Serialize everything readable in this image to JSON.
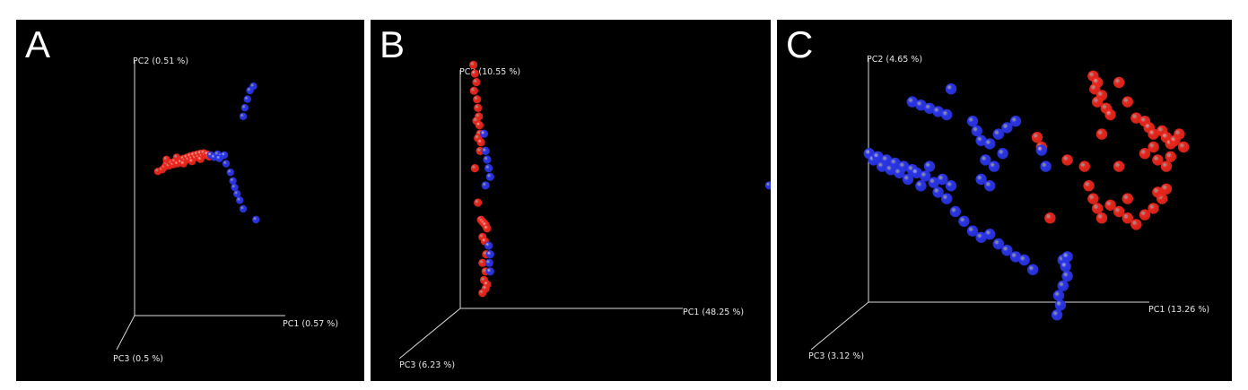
{
  "colors": {
    "group1": "#e8261c",
    "group2": "#2a35e6",
    "axis": "#d9d9d9",
    "background": "#000000"
  },
  "chart_data": [
    {
      "type": "scatter",
      "panel_label": "A",
      "axes": {
        "x": "PC1 (0.57 %)",
        "y": "PC2 (0.51 %)",
        "z": "PC3 (0.5 %)"
      },
      "grid": false,
      "series": [
        {
          "color": "red",
          "points": [
            [
              -0.6,
              0.12,
              0
            ],
            [
              -0.55,
              0.16,
              0
            ],
            [
              -0.52,
              0.22,
              0
            ],
            [
              -0.5,
              0.3,
              0
            ],
            [
              -0.47,
              0.25,
              0
            ],
            [
              -0.45,
              0.33,
              0
            ],
            [
              -0.42,
              0.28,
              0
            ],
            [
              -0.4,
              0.36,
              0
            ],
            [
              -0.37,
              0.3,
              0
            ],
            [
              -0.35,
              0.4,
              0
            ],
            [
              -0.33,
              0.34,
              0
            ],
            [
              -0.3,
              0.42,
              0
            ],
            [
              -0.28,
              0.37,
              0
            ],
            [
              -0.26,
              0.45,
              0
            ],
            [
              -0.24,
              0.4,
              0
            ],
            [
              -0.22,
              0.48,
              0
            ],
            [
              -0.2,
              0.42,
              0
            ],
            [
              -0.18,
              0.5,
              0
            ],
            [
              -0.16,
              0.44,
              0
            ],
            [
              -0.14,
              0.52,
              0
            ],
            [
              -0.12,
              0.46,
              0
            ],
            [
              -0.1,
              0.54,
              0
            ],
            [
              -0.08,
              0.47,
              0
            ],
            [
              -0.06,
              0.55,
              0
            ],
            [
              -0.04,
              0.5,
              0
            ],
            [
              -0.02,
              0.52,
              0
            ],
            [
              0.0,
              0.46,
              0
            ],
            [
              -0.3,
              0.3,
              0
            ],
            [
              -0.2,
              0.35,
              0
            ],
            [
              -0.1,
              0.4,
              0
            ],
            [
              -0.5,
              0.4,
              0
            ],
            [
              -0.38,
              0.45,
              0
            ]
          ]
        },
        {
          "color": "blue",
          "points": [
            [
              0.02,
              0.5,
              0
            ],
            [
              0.06,
              0.45,
              0
            ],
            [
              0.1,
              0.52,
              0
            ],
            [
              0.14,
              0.47,
              0
            ],
            [
              0.18,
              0.5,
              0
            ],
            [
              0.12,
              0.42,
              0
            ],
            [
              0.2,
              0.3,
              0
            ],
            [
              0.25,
              0.1,
              0
            ],
            [
              0.28,
              -0.1,
              0
            ],
            [
              0.3,
              -0.25,
              0
            ],
            [
              0.33,
              -0.4,
              0
            ],
            [
              0.36,
              -0.55,
              0
            ],
            [
              0.4,
              -0.75,
              0
            ],
            [
              0.55,
              -1.0,
              0
            ],
            [
              0.4,
              1.4,
              0
            ],
            [
              0.42,
              1.6,
              0
            ],
            [
              0.45,
              1.8,
              0
            ],
            [
              0.48,
              2.0,
              0
            ],
            [
              0.52,
              2.1,
              0
            ]
          ]
        }
      ]
    },
    {
      "type": "scatter",
      "panel_label": "B",
      "axes": {
        "x": "PC1 (48.25 %)",
        "y": "PC2 (10.55 %)",
        "z": "PC3 (6.23 %)"
      },
      "grid": false,
      "series": [
        {
          "color": "red",
          "points": [
            [
              -0.1,
              2.6,
              0
            ],
            [
              -0.05,
              2.5,
              0
            ],
            [
              0.0,
              2.4,
              0
            ],
            [
              -0.08,
              2.3,
              0
            ],
            [
              0.02,
              2.2,
              0
            ],
            [
              0.05,
              2.1,
              0
            ],
            [
              0.08,
              2.0,
              0
            ],
            [
              0.0,
              1.95,
              0
            ],
            [
              0.1,
              1.9,
              0
            ],
            [
              0.12,
              1.8,
              0
            ],
            [
              0.05,
              1.75,
              0
            ],
            [
              0.15,
              1.7,
              0
            ],
            [
              0.12,
              1.6,
              0
            ],
            [
              -0.05,
              1.4,
              0
            ],
            [
              0.05,
              1.0,
              0
            ],
            [
              0.15,
              0.8,
              0
            ],
            [
              0.2,
              0.78,
              0
            ],
            [
              0.25,
              0.76,
              0
            ],
            [
              0.3,
              0.74,
              0
            ],
            [
              0.35,
              0.7,
              0
            ],
            [
              0.2,
              0.6,
              0
            ],
            [
              0.28,
              0.55,
              0
            ],
            [
              0.32,
              0.4,
              0
            ],
            [
              0.2,
              0.3,
              0
            ],
            [
              0.3,
              0.2,
              0
            ],
            [
              0.25,
              0.1,
              0
            ],
            [
              0.35,
              0.05,
              0
            ],
            [
              0.3,
              0.0,
              0
            ],
            [
              0.2,
              -0.05,
              0
            ]
          ]
        },
        {
          "color": "blue",
          "points": [
            [
              0.25,
              1.8,
              0
            ],
            [
              0.3,
              1.6,
              0
            ],
            [
              0.35,
              1.5,
              0
            ],
            [
              0.4,
              1.4,
              0
            ],
            [
              0.45,
              1.3,
              0
            ],
            [
              0.3,
              1.2,
              0
            ],
            [
              0.4,
              0.5,
              0
            ],
            [
              0.45,
              0.4,
              0
            ],
            [
              0.42,
              0.3,
              0
            ],
            [
              0.45,
              0.2,
              0
            ],
            [
              9.6,
              1.2,
              0
            ]
          ]
        }
      ]
    },
    {
      "type": "scatter",
      "panel_label": "C",
      "axes": {
        "x": "PC1 (13.26 %)",
        "y": "PC2 (4.65 %)",
        "z": "PC3 (3.12 %)"
      },
      "grid": false,
      "series": [
        {
          "color": "red",
          "points": [
            [
              0.9,
              1.6,
              0
            ],
            [
              0.95,
              1.5,
              0
            ],
            [
              0.92,
              1.4,
              0
            ],
            [
              1.0,
              1.3,
              0
            ],
            [
              0.95,
              1.2,
              0
            ],
            [
              1.05,
              1.1,
              0
            ],
            [
              1.1,
              1.0,
              0
            ],
            [
              1.2,
              1.5,
              0
            ],
            [
              1.3,
              1.2,
              0
            ],
            [
              1.4,
              0.95,
              0
            ],
            [
              1.5,
              0.9,
              0
            ],
            [
              1.55,
              0.8,
              0
            ],
            [
              1.6,
              0.7,
              0
            ],
            [
              1.7,
              0.75,
              0
            ],
            [
              1.75,
              0.65,
              0
            ],
            [
              1.8,
              0.55,
              0
            ],
            [
              1.85,
              0.6,
              0
            ],
            [
              1.9,
              0.7,
              0
            ],
            [
              1.95,
              0.5,
              0
            ],
            [
              1.6,
              0.5,
              0
            ],
            [
              1.5,
              0.4,
              0
            ],
            [
              1.65,
              0.3,
              0
            ],
            [
              1.75,
              0.2,
              0
            ],
            [
              1.8,
              0.35,
              0
            ],
            [
              0.8,
              0.2,
              0
            ],
            [
              0.85,
              -0.1,
              0
            ],
            [
              0.9,
              -0.3,
              0
            ],
            [
              0.95,
              -0.45,
              0
            ],
            [
              1.0,
              -0.6,
              0
            ],
            [
              1.1,
              -0.4,
              0
            ],
            [
              1.2,
              -0.5,
              0
            ],
            [
              1.3,
              -0.6,
              0
            ],
            [
              1.4,
              -0.7,
              0
            ],
            [
              1.5,
              -0.55,
              0
            ],
            [
              1.6,
              -0.45,
              0
            ],
            [
              1.7,
              -0.3,
              0
            ],
            [
              1.75,
              -0.15,
              0
            ],
            [
              1.65,
              -0.2,
              0
            ],
            [
              1.3,
              -0.3,
              0
            ],
            [
              0.6,
              0.3,
              0
            ],
            [
              1.0,
              0.7,
              0
            ],
            [
              1.2,
              0.2,
              0
            ],
            [
              0.4,
              -0.6,
              0
            ],
            [
              0.25,
              0.65,
              0
            ],
            [
              0.3,
              0.5,
              0
            ]
          ]
        },
        {
          "color": "blue",
          "points": [
            [
              -1.7,
              0.4,
              0
            ],
            [
              -1.65,
              0.3,
              0
            ],
            [
              -1.6,
              0.35,
              0
            ],
            [
              -1.55,
              0.2,
              0
            ],
            [
              -1.5,
              0.3,
              0
            ],
            [
              -1.45,
              0.15,
              0
            ],
            [
              -1.4,
              0.25,
              0
            ],
            [
              -1.35,
              0.1,
              0
            ],
            [
              -1.3,
              0.2,
              0
            ],
            [
              -1.25,
              0.0,
              0
            ],
            [
              -1.2,
              0.15,
              0
            ],
            [
              -1.15,
              0.1,
              0
            ],
            [
              -1.1,
              -0.1,
              0
            ],
            [
              -1.05,
              0.05,
              0
            ],
            [
              -1.0,
              0.2,
              0
            ],
            [
              -0.95,
              -0.05,
              0
            ],
            [
              -0.9,
              -0.2,
              0
            ],
            [
              -0.85,
              0.0,
              0
            ],
            [
              -0.8,
              -0.3,
              0
            ],
            [
              -0.75,
              -0.1,
              0
            ],
            [
              -0.7,
              -0.5,
              0
            ],
            [
              -0.6,
              -0.65,
              0
            ],
            [
              -0.5,
              -0.8,
              0
            ],
            [
              -0.4,
              -0.9,
              0
            ],
            [
              -0.3,
              -0.85,
              0
            ],
            [
              -0.2,
              -1.0,
              0
            ],
            [
              -0.1,
              -1.1,
              0
            ],
            [
              0.0,
              -1.2,
              0
            ],
            [
              0.1,
              -1.25,
              0
            ],
            [
              0.2,
              -1.4,
              0
            ],
            [
              -1.2,
              1.2,
              0
            ],
            [
              -1.1,
              1.15,
              0
            ],
            [
              -1.0,
              1.1,
              0
            ],
            [
              -0.9,
              1.05,
              0
            ],
            [
              -0.8,
              1.0,
              0
            ],
            [
              -0.75,
              1.4,
              0
            ],
            [
              -0.5,
              0.9,
              0
            ],
            [
              -0.45,
              0.75,
              0
            ],
            [
              -0.4,
              0.6,
              0
            ],
            [
              -0.3,
              0.55,
              0
            ],
            [
              -0.2,
              0.7,
              0
            ],
            [
              -0.1,
              0.8,
              0
            ],
            [
              0.0,
              0.9,
              0
            ],
            [
              -0.35,
              0.3,
              0
            ],
            [
              -0.25,
              0.2,
              0
            ],
            [
              -0.15,
              0.4,
              0
            ],
            [
              -0.4,
              0.0,
              0
            ],
            [
              -0.3,
              -0.1,
              0
            ],
            [
              0.3,
              0.45,
              0
            ],
            [
              0.35,
              0.2,
              0
            ],
            [
              0.55,
              -1.25,
              0
            ],
            [
              0.58,
              -1.35,
              0
            ],
            [
              0.6,
              -1.5,
              0
            ],
            [
              0.55,
              -1.65,
              0
            ],
            [
              0.5,
              -1.8,
              0
            ],
            [
              0.52,
              -1.95,
              0
            ],
            [
              0.48,
              -2.1,
              0
            ],
            [
              0.6,
              -1.2,
              0
            ]
          ]
        }
      ]
    }
  ]
}
